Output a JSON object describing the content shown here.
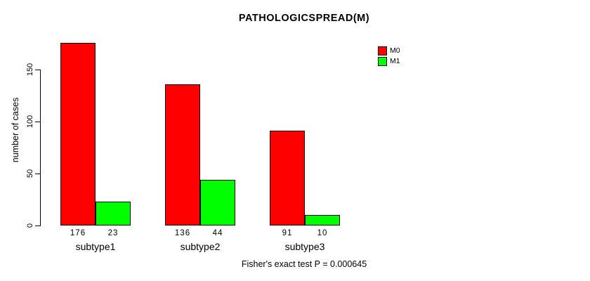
{
  "title": "PATHOLOGICSPREAD(M)",
  "chart_data": {
    "type": "bar",
    "title": "PATHOLOGICSPREAD(M)",
    "ylabel": "number of cases",
    "xlabel": "",
    "categories": [
      "subtype1",
      "subtype2",
      "subtype3"
    ],
    "series": [
      {
        "name": "M0",
        "color": "#ff0000",
        "values": [
          176,
          136,
          91
        ]
      },
      {
        "name": "M1",
        "color": "#00ff00",
        "values": [
          23,
          44,
          10
        ]
      }
    ],
    "yticks": [
      0,
      50,
      100,
      150
    ],
    "ylim": [
      0,
      178
    ],
    "grid": false,
    "legend_position": "inside-top-right",
    "bar_border_color": "#000000",
    "axis_color": "#000000",
    "annotation": "Fisher's exact test P = 0.000645"
  }
}
